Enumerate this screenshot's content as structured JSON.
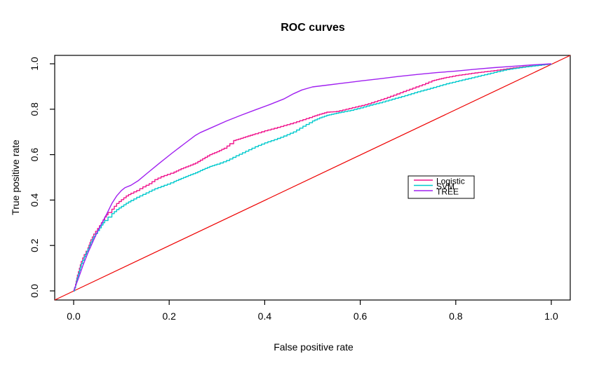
{
  "title": "ROC curves",
  "chart_data": {
    "type": "line",
    "title": "ROC curves",
    "xlabel": "False positive rate",
    "ylabel": "True positive rate",
    "xlim": [
      -0.04,
      1.04
    ],
    "ylim": [
      -0.04,
      1.04
    ],
    "grid": false,
    "background_color": "#ffffff",
    "axis_color": "#000000",
    "x_ticks": [
      {
        "value": 0.0,
        "label": "0.0"
      },
      {
        "value": 0.2,
        "label": "0.2"
      },
      {
        "value": 0.4,
        "label": "0.4"
      },
      {
        "value": 0.6,
        "label": "0.6"
      },
      {
        "value": 0.8,
        "label": "0.8"
      },
      {
        "value": 1.0,
        "label": "1.0"
      }
    ],
    "y_ticks": [
      {
        "value": 0.0,
        "label": "0.0"
      },
      {
        "value": 0.2,
        "label": "0.2"
      },
      {
        "value": 0.4,
        "label": "0.4"
      },
      {
        "value": 0.6,
        "label": "0.6"
      },
      {
        "value": 0.8,
        "label": "0.8"
      },
      {
        "value": 1.0,
        "label": "1.0"
      }
    ],
    "legend_position": "right-center",
    "reference_line": {
      "name": "chance-diagonal",
      "color": "#EE0000",
      "points": [
        [
          -0.04,
          -0.04
        ],
        [
          1.04,
          1.04
        ]
      ]
    },
    "series": [
      {
        "name": "Logistic",
        "color": "#F0148C",
        "style": "step",
        "points": [
          [
            0,
            0
          ],
          [
            0.004,
            0.03
          ],
          [
            0.008,
            0.07
          ],
          [
            0.012,
            0.1
          ],
          [
            0.016,
            0.13
          ],
          [
            0.022,
            0.16
          ],
          [
            0.03,
            0.19
          ],
          [
            0.036,
            0.225
          ],
          [
            0.042,
            0.25
          ],
          [
            0.05,
            0.275
          ],
          [
            0.058,
            0.3
          ],
          [
            0.065,
            0.325
          ],
          [
            0.072,
            0.345
          ],
          [
            0.08,
            0.36
          ],
          [
            0.09,
            0.385
          ],
          [
            0.1,
            0.402
          ],
          [
            0.11,
            0.418
          ],
          [
            0.12,
            0.43
          ],
          [
            0.132,
            0.442
          ],
          [
            0.145,
            0.458
          ],
          [
            0.158,
            0.472
          ],
          [
            0.17,
            0.49
          ],
          [
            0.183,
            0.503
          ],
          [
            0.196,
            0.513
          ],
          [
            0.21,
            0.523
          ],
          [
            0.225,
            0.538
          ],
          [
            0.24,
            0.55
          ],
          [
            0.255,
            0.563
          ],
          [
            0.27,
            0.582
          ],
          [
            0.285,
            0.6
          ],
          [
            0.3,
            0.613
          ],
          [
            0.315,
            0.628
          ],
          [
            0.327,
            0.648
          ],
          [
            0.335,
            0.662
          ],
          [
            0.35,
            0.672
          ],
          [
            0.365,
            0.682
          ],
          [
            0.38,
            0.692
          ],
          [
            0.4,
            0.705
          ],
          [
            0.42,
            0.716
          ],
          [
            0.44,
            0.728
          ],
          [
            0.46,
            0.74
          ],
          [
            0.48,
            0.754
          ],
          [
            0.5,
            0.768
          ],
          [
            0.515,
            0.778
          ],
          [
            0.53,
            0.787
          ],
          [
            0.55,
            0.79
          ],
          [
            0.57,
            0.8
          ],
          [
            0.59,
            0.81
          ],
          [
            0.61,
            0.82
          ],
          [
            0.63,
            0.833
          ],
          [
            0.65,
            0.847
          ],
          [
            0.67,
            0.862
          ],
          [
            0.69,
            0.878
          ],
          [
            0.71,
            0.893
          ],
          [
            0.73,
            0.908
          ],
          [
            0.75,
            0.925
          ],
          [
            0.765,
            0.933
          ],
          [
            0.78,
            0.94
          ],
          [
            0.8,
            0.948
          ],
          [
            0.82,
            0.954
          ],
          [
            0.84,
            0.96
          ],
          [
            0.86,
            0.965
          ],
          [
            0.88,
            0.97
          ],
          [
            0.9,
            0.976
          ],
          [
            0.92,
            0.982
          ],
          [
            0.94,
            0.987
          ],
          [
            0.96,
            0.991
          ],
          [
            0.98,
            0.995
          ],
          [
            1,
            1
          ]
        ]
      },
      {
        "name": "SVM",
        "color": "#00C9CD",
        "style": "step",
        "points": [
          [
            0,
            0
          ],
          [
            0.004,
            0.025
          ],
          [
            0.008,
            0.06
          ],
          [
            0.012,
            0.09
          ],
          [
            0.016,
            0.12
          ],
          [
            0.022,
            0.15
          ],
          [
            0.03,
            0.185
          ],
          [
            0.036,
            0.215
          ],
          [
            0.042,
            0.24
          ],
          [
            0.05,
            0.265
          ],
          [
            0.058,
            0.29
          ],
          [
            0.065,
            0.31
          ],
          [
            0.072,
            0.325
          ],
          [
            0.08,
            0.34
          ],
          [
            0.09,
            0.358
          ],
          [
            0.1,
            0.372
          ],
          [
            0.11,
            0.386
          ],
          [
            0.12,
            0.398
          ],
          [
            0.132,
            0.412
          ],
          [
            0.145,
            0.425
          ],
          [
            0.158,
            0.438
          ],
          [
            0.17,
            0.45
          ],
          [
            0.183,
            0.46
          ],
          [
            0.196,
            0.47
          ],
          [
            0.21,
            0.482
          ],
          [
            0.225,
            0.495
          ],
          [
            0.24,
            0.508
          ],
          [
            0.255,
            0.52
          ],
          [
            0.27,
            0.535
          ],
          [
            0.285,
            0.548
          ],
          [
            0.3,
            0.558
          ],
          [
            0.32,
            0.574
          ],
          [
            0.34,
            0.595
          ],
          [
            0.36,
            0.615
          ],
          [
            0.38,
            0.635
          ],
          [
            0.4,
            0.652
          ],
          [
            0.42,
            0.666
          ],
          [
            0.44,
            0.682
          ],
          [
            0.46,
            0.7
          ],
          [
            0.48,
            0.725
          ],
          [
            0.5,
            0.748
          ],
          [
            0.515,
            0.762
          ],
          [
            0.53,
            0.773
          ],
          [
            0.545,
            0.78
          ],
          [
            0.56,
            0.787
          ],
          [
            0.58,
            0.795
          ],
          [
            0.6,
            0.806
          ],
          [
            0.62,
            0.818
          ],
          [
            0.64,
            0.828
          ],
          [
            0.66,
            0.84
          ],
          [
            0.68,
            0.852
          ],
          [
            0.7,
            0.864
          ],
          [
            0.72,
            0.877
          ],
          [
            0.74,
            0.888
          ],
          [
            0.76,
            0.9
          ],
          [
            0.78,
            0.912
          ],
          [
            0.8,
            0.922
          ],
          [
            0.82,
            0.932
          ],
          [
            0.84,
            0.942
          ],
          [
            0.86,
            0.952
          ],
          [
            0.88,
            0.962
          ],
          [
            0.9,
            0.972
          ],
          [
            0.92,
            0.979
          ],
          [
            0.94,
            0.985
          ],
          [
            0.96,
            0.99
          ],
          [
            0.98,
            0.995
          ],
          [
            1,
            1
          ]
        ]
      },
      {
        "name": "TREE",
        "color": "#A020F0",
        "style": "line",
        "points": [
          [
            0,
            0
          ],
          [
            0.01,
            0.055
          ],
          [
            0.02,
            0.115
          ],
          [
            0.03,
            0.168
          ],
          [
            0.04,
            0.215
          ],
          [
            0.05,
            0.262
          ],
          [
            0.06,
            0.302
          ],
          [
            0.07,
            0.342
          ],
          [
            0.08,
            0.385
          ],
          [
            0.09,
            0.418
          ],
          [
            0.1,
            0.442
          ],
          [
            0.108,
            0.455
          ],
          [
            0.12,
            0.465
          ],
          [
            0.135,
            0.485
          ],
          [
            0.155,
            0.52
          ],
          [
            0.18,
            0.563
          ],
          [
            0.205,
            0.605
          ],
          [
            0.23,
            0.645
          ],
          [
            0.255,
            0.685
          ],
          [
            0.265,
            0.697
          ],
          [
            0.29,
            0.72
          ],
          [
            0.32,
            0.748
          ],
          [
            0.35,
            0.773
          ],
          [
            0.38,
            0.797
          ],
          [
            0.41,
            0.82
          ],
          [
            0.44,
            0.845
          ],
          [
            0.46,
            0.868
          ],
          [
            0.478,
            0.885
          ],
          [
            0.5,
            0.898
          ],
          [
            0.53,
            0.906
          ],
          [
            0.56,
            0.914
          ],
          [
            0.6,
            0.924
          ],
          [
            0.64,
            0.934
          ],
          [
            0.68,
            0.944
          ],
          [
            0.72,
            0.953
          ],
          [
            0.76,
            0.961
          ],
          [
            0.8,
            0.968
          ],
          [
            0.84,
            0.976
          ],
          [
            0.88,
            0.983
          ],
          [
            0.92,
            0.989
          ],
          [
            0.96,
            0.995
          ],
          [
            1,
            1
          ]
        ]
      }
    ],
    "legend_entries": [
      {
        "label": "Logistic",
        "color": "#F0148C"
      },
      {
        "label": "SVM",
        "color": "#00C9CD"
      },
      {
        "label": "TREE",
        "color": "#A020F0"
      }
    ]
  }
}
